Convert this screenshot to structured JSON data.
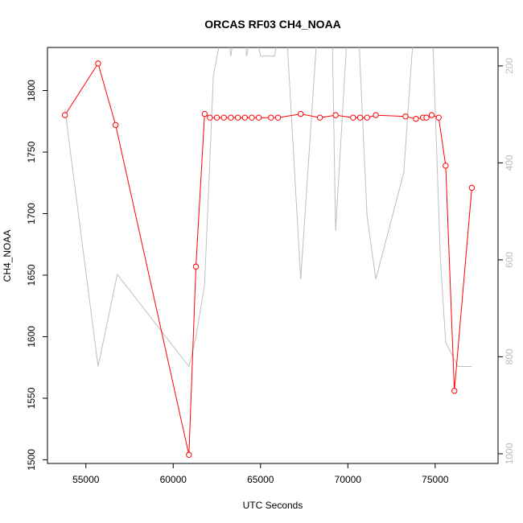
{
  "chart_data": {
    "type": "line",
    "title": "ORCAS RF03 CH4_NOAA",
    "xlabel": "UTC Seconds",
    "ylabel": "CH4_NOAA",
    "xlim": [
      52800,
      78600
    ],
    "ylim": [
      1497,
      1835
    ],
    "y2lim": [
      1020,
      162
    ],
    "y2_reversed": true,
    "xticks": [
      55000,
      60000,
      65000,
      70000,
      75000
    ],
    "yticks": [
      1500,
      1550,
      1600,
      1650,
      1700,
      1750,
      1800
    ],
    "y2ticks": [
      200,
      400,
      600,
      800,
      1000
    ],
    "grid": false,
    "series": [
      {
        "axis": "left",
        "color": "#ff0000",
        "marker": "open-circle",
        "x": [
          53800,
          55700,
          56700,
          60900,
          61300,
          61800,
          62100,
          62500,
          62900,
          63300,
          63700,
          64100,
          64500,
          64900,
          65600,
          66000,
          67300,
          68400,
          69300,
          70300,
          70700,
          71100,
          71600,
          73300,
          73900,
          74300,
          74500,
          74800,
          75200,
          75600,
          76100,
          77100
        ],
        "y": [
          1780,
          1822,
          1772,
          1504,
          1657,
          1781,
          1778,
          1778,
          1778,
          1778,
          1778,
          1778,
          1778,
          1778,
          1778,
          1778,
          1781,
          1778,
          1780,
          1778,
          1778,
          1778,
          1780,
          1779,
          1777,
          1778,
          1778,
          1780,
          1778,
          1739,
          1556,
          1721
        ]
      },
      {
        "axis": "right",
        "color": "#bebebe",
        "marker": "none",
        "x": [
          53800,
          55700,
          56800,
          60900,
          61300,
          61800,
          62300,
          63000,
          63300,
          63600,
          64000,
          64200,
          64600,
          65000,
          65800,
          66400,
          67300,
          68300,
          69100,
          69300,
          70000,
          70600,
          71100,
          71600,
          73200,
          73800,
          74800,
          75300,
          75600,
          76300,
          77100
        ],
        "y": [
          290,
          820,
          630,
          820,
          760,
          650,
          220,
          90,
          180,
          100,
          60,
          180,
          110,
          180,
          180,
          70,
          640,
          100,
          120,
          540,
          110,
          120,
          510,
          640,
          420,
          110,
          80,
          600,
          770,
          820,
          820
        ]
      }
    ]
  }
}
